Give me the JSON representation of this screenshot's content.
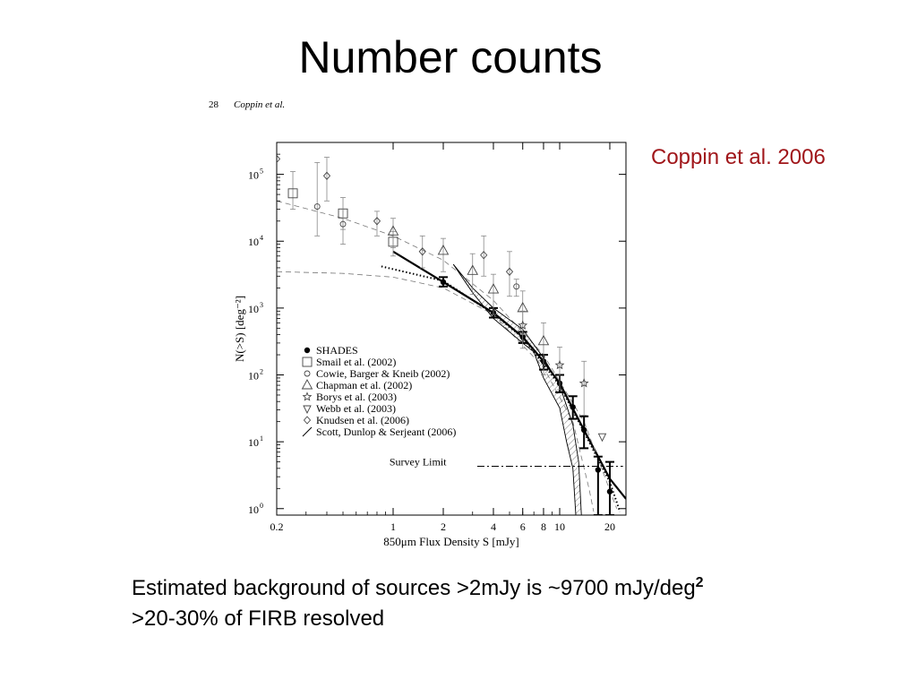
{
  "slide": {
    "title": "Number counts",
    "credit": "Coppin et al. 2006",
    "caption_line1": "Estimated background of sources >2mJy is ~9700 mJy/deg",
    "caption_sup": "2",
    "caption_line2": ">20-30% of FIRB resolved"
  },
  "figure_header": {
    "page_number": "28",
    "authors": "Coppin et al."
  },
  "chart_data": {
    "type": "scatter",
    "xlabel": "850μm Flux Density S [mJy]",
    "ylabel": "N(>S) [deg⁻²]",
    "xscale": "log",
    "yscale": "log",
    "xlim": [
      0.2,
      25
    ],
    "ylim": [
      0.8,
      300000
    ],
    "xticks": [
      {
        "value": 0.2,
        "label": "0.2"
      },
      {
        "value": 1,
        "label": "1"
      },
      {
        "value": 2,
        "label": "2"
      },
      {
        "value": 4,
        "label": "4"
      },
      {
        "value": 6,
        "label": "6"
      },
      {
        "value": 8,
        "label": "8"
      },
      {
        "value": 10,
        "label": "10"
      },
      {
        "value": 20,
        "label": "20"
      }
    ],
    "yticks": [
      {
        "value": 1,
        "label": "10",
        "exp": "0"
      },
      {
        "value": 10,
        "label": "10",
        "exp": "1"
      },
      {
        "value": 100,
        "label": "10",
        "exp": "2"
      },
      {
        "value": 1000,
        "label": "10",
        "exp": "3"
      },
      {
        "value": 10000,
        "label": "10",
        "exp": "4"
      },
      {
        "value": 100000,
        "label": "10",
        "exp": "5"
      }
    ],
    "survey_limit": {
      "label": "Survey Limit",
      "y": 4.3,
      "x_range": [
        3.2,
        24
      ]
    },
    "legend": {
      "position": "lower-left",
      "entries": [
        {
          "label": "SHADES",
          "marker": "filled-circle"
        },
        {
          "label": "Smail et al. (2002)",
          "marker": "square"
        },
        {
          "label": "Cowie, Barger & Kneib (2002)",
          "marker": "circle"
        },
        {
          "label": "Chapman et al. (2002)",
          "marker": "triangle"
        },
        {
          "label": "Borys et al. (2003)",
          "marker": "star"
        },
        {
          "label": "Webb et al. (2003)",
          "marker": "down-triangle"
        },
        {
          "label": "Knudsen et al. (2006)",
          "marker": "diamond"
        },
        {
          "label": "Scott, Dunlop & Serjeant (2006)",
          "marker": "slash"
        }
      ]
    },
    "series": [
      {
        "name": "SHADES",
        "marker": "filled-circle",
        "points": [
          {
            "x": 2.0,
            "y": 2450,
            "lo": 2100,
            "hi": 2900
          },
          {
            "x": 4.0,
            "y": 850,
            "lo": 720,
            "hi": 1000
          },
          {
            "x": 6.0,
            "y": 370,
            "lo": 300,
            "hi": 440
          },
          {
            "x": 8.0,
            "y": 160,
            "lo": 120,
            "hi": 200
          },
          {
            "x": 10.0,
            "y": 75,
            "lo": 55,
            "hi": 100
          },
          {
            "x": 12.0,
            "y": 33,
            "lo": 22,
            "hi": 48
          },
          {
            "x": 14.0,
            "y": 15,
            "lo": 8,
            "hi": 24
          },
          {
            "x": 17.0,
            "y": 3.8,
            "lo": 0.8,
            "hi": 6
          },
          {
            "x": 20.0,
            "y": 1.8,
            "lo": 0.8,
            "hi": 5
          }
        ]
      },
      {
        "name": "Smail et al. (2002)",
        "marker": "square",
        "points": [
          {
            "x": 0.25,
            "y": 52000,
            "lo": 30000,
            "hi": 110000
          },
          {
            "x": 0.5,
            "y": 26000,
            "lo": 15000,
            "hi": 45000
          },
          {
            "x": 1.0,
            "y": 9800,
            "lo": 6000,
            "hi": 14000
          }
        ]
      },
      {
        "name": "Cowie, Barger & Kneib (2002)",
        "marker": "circle",
        "points": [
          {
            "x": 0.35,
            "y": 33000,
            "lo": 12000,
            "hi": 150000
          },
          {
            "x": 0.5,
            "y": 18000,
            "lo": 9000,
            "hi": 30000
          },
          {
            "x": 5.5,
            "y": 2100,
            "lo": 1500,
            "hi": 2700
          }
        ]
      },
      {
        "name": "Chapman et al. (2002)",
        "marker": "triangle",
        "points": [
          {
            "x": 1.0,
            "y": 14000,
            "lo": 8000,
            "hi": 22000
          },
          {
            "x": 2.0,
            "y": 7200,
            "lo": 3500,
            "hi": 11000
          },
          {
            "x": 3.0,
            "y": 3600,
            "lo": 1600,
            "hi": 6500
          },
          {
            "x": 4.0,
            "y": 1900,
            "lo": 800,
            "hi": 3200
          },
          {
            "x": 6.0,
            "y": 1000,
            "lo": 400,
            "hi": 1800
          },
          {
            "x": 8.0,
            "y": 320,
            "lo": 100,
            "hi": 600
          }
        ]
      },
      {
        "name": "Borys et al. (2003)",
        "marker": "star",
        "points": [
          {
            "x": 6.0,
            "y": 550,
            "lo": 250,
            "hi": 900
          },
          {
            "x": 10.0,
            "y": 140,
            "lo": 60,
            "hi": 260
          },
          {
            "x": 14.0,
            "y": 75,
            "lo": 25,
            "hi": 160
          }
        ]
      },
      {
        "name": "Webb et al. (2003)",
        "marker": "down-triangle",
        "points": [
          {
            "x": 18.0,
            "y": 12,
            "lo": 12,
            "hi": 12
          }
        ]
      },
      {
        "name": "Knudsen et al. (2006)",
        "marker": "diamond",
        "points": [
          {
            "x": 0.2,
            "y": 170000,
            "lo": 170000,
            "hi": 170000
          },
          {
            "x": 0.4,
            "y": 95000,
            "lo": 40000,
            "hi": 180000
          },
          {
            "x": 0.8,
            "y": 20000,
            "lo": 12000,
            "hi": 28000
          },
          {
            "x": 1.5,
            "y": 7000,
            "lo": 4000,
            "hi": 12000
          },
          {
            "x": 3.5,
            "y": 6200,
            "lo": 3000,
            "hi": 12000
          },
          {
            "x": 5.0,
            "y": 3500,
            "lo": 1500,
            "hi": 7000
          }
        ]
      }
    ],
    "curves": [
      {
        "name": "SHADES fit",
        "style": "solid-thick",
        "points": [
          [
            1.0,
            7000
          ],
          [
            2.0,
            2450
          ],
          [
            4.0,
            850
          ],
          [
            6.0,
            370
          ],
          [
            8.0,
            160
          ],
          [
            10.0,
            75
          ],
          [
            14.0,
            15
          ],
          [
            20.0,
            2.8
          ],
          [
            25.0,
            1.4
          ]
        ]
      },
      {
        "name": "SHADES dotted fit",
        "style": "dotted",
        "points": [
          [
            0.85,
            4200
          ],
          [
            2.0,
            2550
          ],
          [
            4.0,
            820
          ],
          [
            6.0,
            360
          ],
          [
            10.0,
            70
          ],
          [
            14.0,
            14
          ],
          [
            20.0,
            2.5
          ],
          [
            23.0,
            0.9
          ]
        ]
      },
      {
        "name": "model 1",
        "style": "dashed",
        "points": [
          [
            0.2,
            40000
          ],
          [
            0.5,
            22000
          ],
          [
            1.0,
            12000
          ],
          [
            2.0,
            5200
          ],
          [
            4.0,
            1300
          ],
          [
            8.0,
            200
          ],
          [
            14.0,
            20
          ],
          [
            22.0,
            1.0
          ]
        ]
      },
      {
        "name": "model 2",
        "style": "dashed",
        "points": [
          [
            0.2,
            3500
          ],
          [
            0.5,
            3300
          ],
          [
            1.0,
            2900
          ],
          [
            2.0,
            2000
          ],
          [
            4.0,
            800
          ],
          [
            8.0,
            130
          ],
          [
            12.0,
            20
          ],
          [
            15.0,
            2
          ],
          [
            16.0,
            0.9
          ]
        ]
      },
      {
        "name": "Scott, Dunlop & Serjeant (2006) upper",
        "style": "solid-thin",
        "points": [
          [
            2.3,
            4500
          ],
          [
            3.0,
            2000
          ],
          [
            4.0,
            1000
          ],
          [
            6.0,
            480
          ],
          [
            8.0,
            180
          ],
          [
            10.0,
            70
          ],
          [
            12.0,
            18
          ],
          [
            13.0,
            5
          ],
          [
            13.5,
            0.8
          ]
        ]
      },
      {
        "name": "Scott, Dunlop & Serjeant (2006) lower",
        "style": "solid-thin",
        "points": [
          [
            2.3,
            4500
          ],
          [
            3.0,
            1700
          ],
          [
            4.0,
            700
          ],
          [
            6.0,
            300
          ],
          [
            7.0,
            220
          ],
          [
            8.0,
            90
          ],
          [
            10.0,
            32
          ],
          [
            11.0,
            10
          ],
          [
            12.0,
            4
          ],
          [
            12.5,
            0.8
          ]
        ]
      }
    ]
  }
}
